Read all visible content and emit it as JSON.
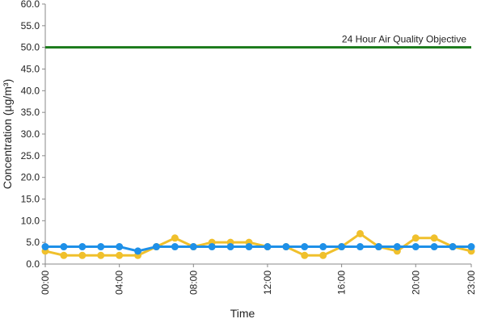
{
  "chart_data": {
    "type": "line",
    "ylabel": "Concentration (µg/m³)",
    "xlabel": "Time",
    "categories": [
      "00:00",
      null,
      null,
      null,
      "04:00",
      null,
      null,
      null,
      "08:00",
      null,
      null,
      null,
      "12:00",
      null,
      null,
      null,
      "16:00",
      null,
      null,
      null,
      "20:00",
      null,
      null,
      "23:00"
    ],
    "series": [
      {
        "color": "#f0c02c",
        "values": [
          3,
          2,
          2,
          2,
          2,
          2,
          4,
          6,
          4,
          5,
          5,
          5,
          4,
          4,
          2,
          2,
          4,
          7,
          4,
          3,
          6,
          6,
          4,
          3
        ]
      },
      {
        "color": "#1e90e8",
        "values": [
          4,
          4,
          4,
          4,
          4,
          3,
          4,
          4,
          4,
          4,
          4,
          4,
          4,
          4,
          4,
          4,
          4,
          4,
          4,
          4,
          4,
          4,
          4,
          4
        ]
      }
    ],
    "objective": {
      "label": "24 Hour Air Quality Objective",
      "value": 50,
      "color": "#1a7a1a"
    },
    "ylim": [
      0,
      60
    ],
    "yticks": [
      {
        "value": 0,
        "label": "0.0"
      },
      {
        "value": 5,
        "label": "5.0"
      },
      {
        "value": 10,
        "label": "10.0"
      },
      {
        "value": 15,
        "label": "15.0"
      },
      {
        "value": 20,
        "label": "20.0"
      },
      {
        "value": 25,
        "label": "25.0"
      },
      {
        "value": 30,
        "label": "30.0"
      },
      {
        "value": 35,
        "label": "35.0"
      },
      {
        "value": 40,
        "label": "40.0"
      },
      {
        "value": 45,
        "label": "45.0"
      },
      {
        "value": 50,
        "label": "50.0"
      },
      {
        "value": 55,
        "label": "55.0"
      },
      {
        "value": 60,
        "label": "60.0"
      }
    ],
    "grid": false
  }
}
